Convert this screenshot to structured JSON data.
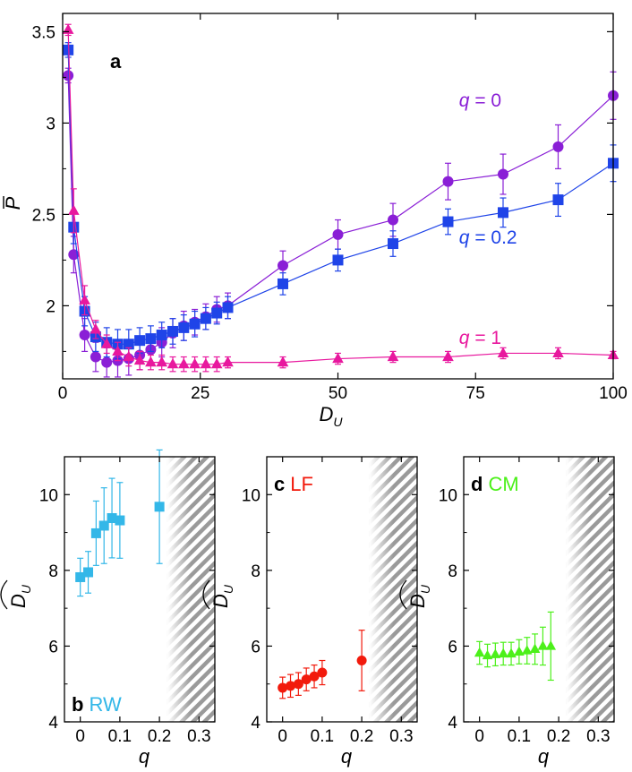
{
  "chart_data": [
    {
      "panel": "a",
      "type": "line",
      "xlabel_main": "D",
      "xlabel_sub": "U",
      "ylabel": "P",
      "xlim": [
        0,
        100
      ],
      "ylim": [
        1.6,
        3.6
      ],
      "xticks": [
        0,
        25,
        50,
        75,
        100
      ],
      "yticks": [
        2,
        2.5,
        3,
        3.5
      ],
      "ytick_labels": [
        "2",
        "2.5",
        "3",
        "3.5"
      ],
      "grid": false,
      "series": [
        {
          "label_var": "q",
          "label_value": "= 0",
          "color": "#8a1fd6",
          "marker": "circle",
          "label_pos": [
            72,
            3.09
          ],
          "x": [
            1,
            2,
            4,
            6,
            8,
            10,
            12,
            14,
            16,
            18,
            20,
            22,
            24,
            26,
            28,
            30,
            40,
            50,
            60,
            70,
            80,
            90,
            100
          ],
          "y": [
            3.26,
            2.28,
            1.84,
            1.72,
            1.69,
            1.7,
            1.71,
            1.73,
            1.76,
            1.8,
            1.85,
            1.89,
            1.91,
            1.94,
            1.98,
            2.0,
            2.22,
            2.39,
            2.47,
            2.68,
            2.72,
            2.87,
            3.15
          ],
          "err": [
            0.04,
            0.1,
            0.09,
            0.08,
            0.08,
            0.09,
            0.09,
            0.08,
            0.08,
            0.08,
            0.08,
            0.08,
            0.07,
            0.07,
            0.07,
            0.07,
            0.08,
            0.08,
            0.09,
            0.1,
            0.11,
            0.12,
            0.13
          ]
        },
        {
          "label_var": "q",
          "label_value": "= 0.2",
          "color": "#1f44e8",
          "marker": "square",
          "label_pos": [
            72,
            2.34
          ],
          "x": [
            1,
            2,
            4,
            6,
            8,
            10,
            12,
            14,
            16,
            18,
            20,
            22,
            24,
            26,
            28,
            30,
            40,
            50,
            60,
            70,
            80,
            90,
            100
          ],
          "y": [
            3.4,
            2.43,
            1.97,
            1.83,
            1.8,
            1.79,
            1.79,
            1.81,
            1.82,
            1.84,
            1.86,
            1.88,
            1.9,
            1.93,
            1.96,
            1.99,
            2.12,
            2.25,
            2.34,
            2.46,
            2.51,
            2.58,
            2.78
          ],
          "err": [
            0.04,
            0.09,
            0.08,
            0.08,
            0.08,
            0.08,
            0.08,
            0.07,
            0.07,
            0.07,
            0.07,
            0.07,
            0.07,
            0.06,
            0.06,
            0.06,
            0.06,
            0.06,
            0.07,
            0.07,
            0.08,
            0.09,
            0.1
          ]
        },
        {
          "label_var": "q",
          "label_value": "= 1",
          "color": "#e8189e",
          "marker": "triangle",
          "label_pos": [
            72,
            1.79
          ],
          "x": [
            1,
            2,
            4,
            6,
            8,
            10,
            12,
            14,
            16,
            18,
            20,
            22,
            24,
            26,
            28,
            30,
            40,
            50,
            60,
            70,
            80,
            90,
            100
          ],
          "y": [
            3.51,
            2.52,
            2.03,
            1.87,
            1.79,
            1.75,
            1.72,
            1.7,
            1.69,
            1.69,
            1.68,
            1.68,
            1.68,
            1.68,
            1.68,
            1.69,
            1.69,
            1.71,
            1.72,
            1.72,
            1.74,
            1.74,
            1.73
          ],
          "err": [
            0.03,
            0.12,
            0.08,
            0.05,
            0.05,
            0.05,
            0.05,
            0.05,
            0.04,
            0.04,
            0.04,
            0.04,
            0.04,
            0.04,
            0.04,
            0.03,
            0.03,
            0.03,
            0.03,
            0.03,
            0.03,
            0.03,
            0.02
          ]
        }
      ]
    },
    {
      "panel": "b",
      "tag": "RW",
      "type": "scatter",
      "color": "#33b7e8",
      "marker": "square",
      "xlabel": "q",
      "ylabel_main": "D",
      "ylabel_sub": "U",
      "xlim": [
        -0.04,
        0.34
      ],
      "ylim": [
        4,
        11
      ],
      "xticks": [
        0,
        0.1,
        0.2,
        0.3
      ],
      "xtick_labels": [
        "0",
        "0.1",
        "0.2",
        "0.3"
      ],
      "yticks": [
        4,
        6,
        8,
        10
      ],
      "hatch_from": 0.22,
      "x": [
        0,
        0.02,
        0.04,
        0.06,
        0.08,
        0.1,
        0.2
      ],
      "y": [
        7.82,
        7.95,
        8.98,
        9.18,
        9.38,
        9.32,
        9.68
      ],
      "err": [
        0.5,
        0.55,
        0.85,
        1.0,
        1.05,
        1.0,
        1.5
      ]
    },
    {
      "panel": "c",
      "tag": "LF",
      "type": "scatter",
      "color": "#f21a0c",
      "marker": "circle",
      "xlabel": "q",
      "ylabel_main": "D",
      "ylabel_sub": "U",
      "xlim": [
        -0.04,
        0.34
      ],
      "ylim": [
        4,
        11
      ],
      "xticks": [
        0,
        0.1,
        0.2,
        0.3
      ],
      "xtick_labels": [
        "0",
        "0.1",
        "0.2",
        "0.3"
      ],
      "yticks": [
        4,
        6,
        8,
        10
      ],
      "hatch_from": 0.22,
      "x": [
        0,
        0.02,
        0.04,
        0.06,
        0.08,
        0.1,
        0.2
      ],
      "y": [
        4.9,
        4.95,
        5.0,
        5.12,
        5.2,
        5.3,
        5.62
      ],
      "err": [
        0.28,
        0.3,
        0.3,
        0.3,
        0.3,
        0.32,
        0.8
      ]
    },
    {
      "panel": "d",
      "tag": "CM",
      "type": "scatter",
      "color": "#4cf01a",
      "marker": "triangle",
      "xlabel": "q",
      "ylabel_main": "D",
      "ylabel_sub": "U",
      "xlim": [
        -0.04,
        0.34
      ],
      "ylim": [
        4,
        11
      ],
      "xticks": [
        0,
        0.1,
        0.2,
        0.3
      ],
      "xtick_labels": [
        "0",
        "0.1",
        "0.2",
        "0.3"
      ],
      "yticks": [
        4,
        6,
        8,
        10
      ],
      "hatch_from": 0.22,
      "x": [
        0,
        0.02,
        0.04,
        0.06,
        0.08,
        0.1,
        0.12,
        0.14,
        0.16,
        0.18
      ],
      "y": [
        5.82,
        5.75,
        5.78,
        5.8,
        5.8,
        5.85,
        5.88,
        5.92,
        6.0,
        6.0
      ],
      "err": [
        0.3,
        0.3,
        0.3,
        0.3,
        0.3,
        0.32,
        0.35,
        0.4,
        0.5,
        0.9
      ]
    }
  ]
}
